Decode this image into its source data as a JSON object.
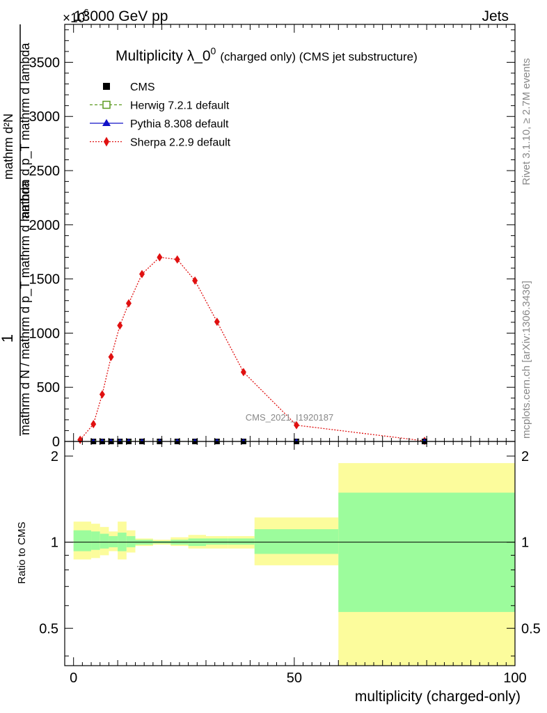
{
  "header": {
    "energy_label": "13000 GeV pp",
    "process_label": "Jets",
    "y_exponent_label": "×10",
    "y_exponent_power": "-6"
  },
  "side_labels": {
    "rivet": "Rivet 3.1.10, ≥ 2.7M events",
    "mcplots": "mcplots.cern.ch [arXiv:1306.3436]"
  },
  "watermark": "CMS_2021_I1920187",
  "chart_data": [
    {
      "type": "line",
      "title": "Multiplicity λ_0^0 (charged only) (CMS jet substructure)",
      "title_main": "Multiplicity λ_0",
      "title_sup": "0",
      "title_rest": "(charged only) (CMS jet substructure)",
      "ylabel_lines": [
        "1",
        "mathrm d N / mathrm d p_T mathrm d lambda",
        "mathrm d²N",
        "mathrm d p_T mathrm d lambda"
      ],
      "xlim": [
        -2,
        100
      ],
      "ylim": [
        0,
        3850
      ],
      "yticks": [
        0,
        500,
        1000,
        1500,
        2000,
        2500,
        3000,
        3500
      ],
      "legend": [
        {
          "label": "CMS",
          "color": "#000000",
          "marker": "square"
        },
        {
          "label": "Herwig 7.2.1 default",
          "color": "#5a9a1f",
          "marker": "open-square",
          "dash": "4,3"
        },
        {
          "label": "Pythia 8.308 default",
          "color": "#1010c8",
          "marker": "triangle",
          "dash": ""
        },
        {
          "label": "Sherpa 2.2.9 default",
          "color": "#e01010",
          "marker": "diamond",
          "dash": "2,2"
        }
      ],
      "series": [
        {
          "name": "Sherpa 2.2.9 default",
          "x": [
            1.5,
            4.5,
            6.5,
            8.5,
            10.5,
            12.5,
            15.5,
            19.5,
            23.5,
            27.5,
            32.5,
            38.5,
            50.5,
            79.5
          ],
          "values": [
            15,
            160,
            435,
            780,
            1070,
            1275,
            1545,
            1700,
            1680,
            1485,
            1105,
            640,
            150,
            5
          ]
        },
        {
          "name": "CMS",
          "x": [
            4.5,
            6.5,
            8.5,
            10.5,
            12.5,
            15.5,
            19.5,
            23.5,
            27.5,
            32.5,
            38.5,
            50.5,
            79.5
          ],
          "values": [
            0,
            0,
            0,
            0,
            0,
            0,
            0,
            0,
            0,
            0,
            0,
            0,
            0
          ]
        }
      ]
    },
    {
      "type": "area",
      "ylabel": "Ratio to CMS",
      "xlabel": "multiplicity (charged-only)",
      "xlim": [
        -2,
        100
      ],
      "ylim": [
        0.37,
        2.25
      ],
      "yticks": [
        0.5,
        1,
        2
      ],
      "xticks": [
        0,
        50,
        100
      ],
      "bands": [
        {
          "x0": 0,
          "x1": 4,
          "inner": [
            0.93,
            1.1
          ],
          "outer": [
            0.87,
            1.18
          ]
        },
        {
          "x0": 4,
          "x1": 6,
          "inner": [
            0.94,
            1.09
          ],
          "outer": [
            0.88,
            1.16
          ]
        },
        {
          "x0": 6,
          "x1": 8,
          "inner": [
            0.95,
            1.07
          ],
          "outer": [
            0.9,
            1.13
          ]
        },
        {
          "x0": 8,
          "x1": 10,
          "inner": [
            0.96,
            1.05
          ],
          "outer": [
            0.93,
            1.09
          ]
        },
        {
          "x0": 10,
          "x1": 12,
          "inner": [
            0.93,
            1.08
          ],
          "outer": [
            0.87,
            1.18
          ]
        },
        {
          "x0": 12,
          "x1": 14,
          "inner": [
            0.96,
            1.05
          ],
          "outer": [
            0.92,
            1.1
          ]
        },
        {
          "x0": 14,
          "x1": 18,
          "inner": [
            0.98,
            1.02
          ],
          "outer": [
            0.97,
            1.03
          ]
        },
        {
          "x0": 18,
          "x1": 22,
          "inner": [
            0.99,
            1.01
          ],
          "outer": [
            0.98,
            1.02
          ]
        },
        {
          "x0": 22,
          "x1": 26,
          "inner": [
            0.98,
            1.02
          ],
          "outer": [
            0.97,
            1.04
          ]
        },
        {
          "x0": 26,
          "x1": 30,
          "inner": [
            0.97,
            1.03
          ],
          "outer": [
            0.95,
            1.06
          ]
        },
        {
          "x0": 30,
          "x1": 35,
          "inner": [
            0.98,
            1.03
          ],
          "outer": [
            0.95,
            1.05
          ]
        },
        {
          "x0": 35,
          "x1": 41,
          "inner": [
            0.98,
            1.03
          ],
          "outer": [
            0.95,
            1.05
          ]
        },
        {
          "x0": 41,
          "x1": 60,
          "inner": [
            0.91,
            1.11
          ],
          "outer": [
            0.83,
            1.22
          ]
        },
        {
          "x0": 60,
          "x1": 100,
          "inner": [
            0.57,
            1.49
          ],
          "outer": [
            0.37,
            1.89
          ]
        }
      ],
      "reference": 1,
      "inner_color": "#9cfc9c",
      "outer_color": "#fcfc9c"
    }
  ]
}
